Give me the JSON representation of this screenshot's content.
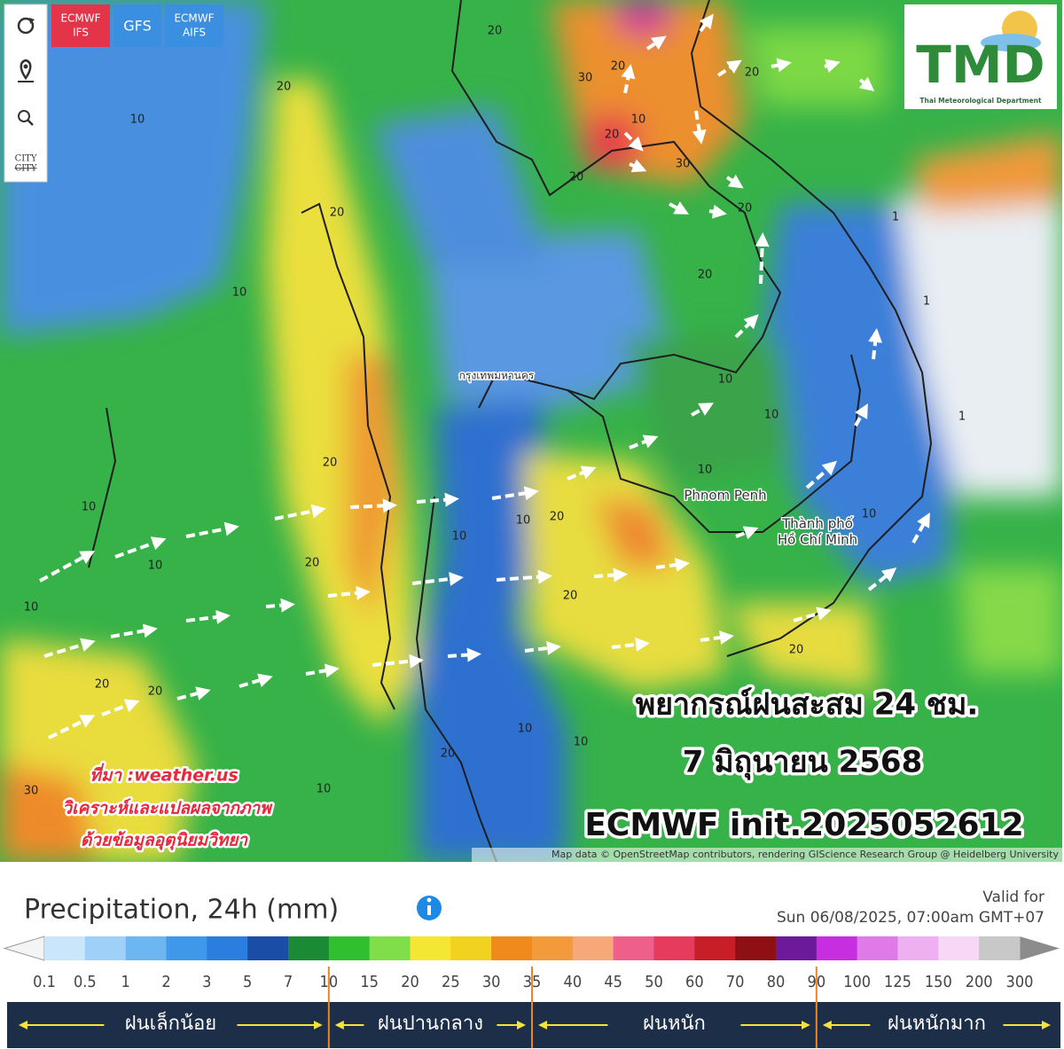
{
  "toolbar": {
    "models": [
      [
        "ECMWF",
        "IFS"
      ],
      [
        "GFS"
      ],
      [
        "ECMWF",
        "AIFS"
      ]
    ],
    "city_button": [
      "CITY",
      "CITY"
    ]
  },
  "logo": {
    "text": "TMD",
    "subtitle": "Thai Meteorological Department"
  },
  "map": {
    "places": [
      "กรุงเทพมหานคร",
      "Phnom Penh",
      "Thành phố",
      "Hồ Chí Minh"
    ],
    "contours": [
      20,
      10,
      20,
      10,
      20,
      20,
      10,
      10,
      20,
      20,
      10,
      10,
      20,
      20,
      10,
      10,
      10,
      20,
      10,
      30,
      30,
      20,
      10,
      20,
      30,
      20,
      20,
      20,
      20,
      1,
      10,
      10,
      10,
      20,
      10,
      20,
      1,
      1
    ]
  },
  "overlay": {
    "title": [
      "พยากรณ์ฝนสะสม 24 ชม.",
      "7 มิถุนายน 2568",
      "ECMWF init.2025052612"
    ],
    "source": [
      "ที่มา :weather.us",
      "วิเคราะห์และแปลผลจากภาพ",
      "ด้วยข้อมูลอุตุนิยมวิทยา"
    ]
  },
  "attribution": "Map data © OpenStreetMap contributors, rendering GIScience Research Group @ Heidelberg University",
  "legend": {
    "title": "Precipitation, 24h (mm)",
    "valid_label": "Valid for",
    "valid_time": "Sun 06/08/2025, 07:00am GMT+07",
    "scale": [
      0.1,
      0.5,
      1,
      2,
      3,
      5,
      7,
      10,
      15,
      20,
      25,
      30,
      35,
      40,
      45,
      50,
      60,
      70,
      80,
      90,
      100,
      125,
      150,
      200,
      300
    ],
    "colors": [
      "#c9e6fb",
      "#9fd0f7",
      "#6cb6f1",
      "#3f98ea",
      "#2a7edf",
      "#1a4ea6",
      "#1b8a34",
      "#2fbf2f",
      "#80df48",
      "#f4e632",
      "#f1d21f",
      "#f08a1c",
      "#f39a3a",
      "#f6a878",
      "#ee5f8a",
      "#e63b5c",
      "#c81e2a",
      "#8e1014",
      "#6c1a9a",
      "#c62ee0",
      "#e07ae8",
      "#eeb0f0",
      "#f6d8f6",
      "#c8c8c8"
    ],
    "categories": [
      "ฝนเล็กน้อย",
      "ฝนปานกลาง",
      "ฝนหนัก",
      "ฝนหนักมาก"
    ]
  }
}
